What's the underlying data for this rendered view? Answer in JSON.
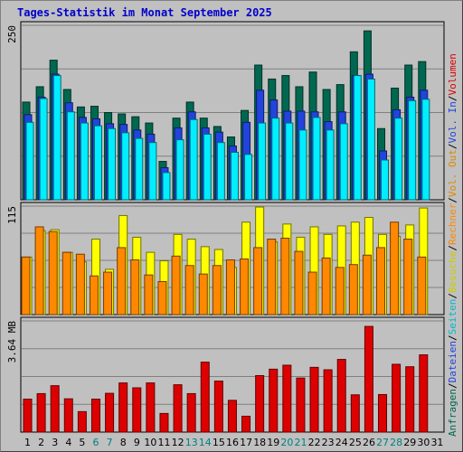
{
  "title": "Tages-Statistik im Monat September 2025",
  "chart_data": [
    {
      "type": "bar",
      "panel": "top",
      "y_max_label": "250",
      "ylim": [
        0,
        250
      ],
      "categories": [
        "1",
        "2",
        "3",
        "4",
        "5",
        "6",
        "7",
        "8",
        "9",
        "10",
        "11",
        "12",
        "13",
        "14",
        "15",
        "16",
        "17",
        "18",
        "19",
        "20",
        "21",
        "22",
        "23",
        "24",
        "25",
        "26",
        "27",
        "28",
        "29",
        "30",
        "31"
      ],
      "series": [
        {
          "name": "Anfragen",
          "color": "#006850",
          "values": [
            140,
            162,
            200,
            158,
            133,
            134,
            125,
            123,
            119,
            110,
            55,
            117,
            140,
            117,
            105,
            90,
            128,
            193,
            173,
            178,
            162,
            183,
            158,
            165,
            212,
            242,
            102,
            160,
            193,
            198,
            null
          ]
        },
        {
          "name": "Dateien",
          "color": "#2244dd",
          "values": [
            122,
            147,
            180,
            139,
            118,
            116,
            109,
            108,
            100,
            94,
            46,
            103,
            126,
            103,
            97,
            77,
            111,
            157,
            143,
            127,
            127,
            126,
            112,
            126,
            178,
            180,
            70,
            129,
            147,
            157,
            null
          ]
        },
        {
          "name": "Seiten",
          "color": "#00eeff",
          "values": [
            111,
            145,
            178,
            126,
            110,
            106,
            102,
            96,
            88,
            82,
            39,
            86,
            115,
            94,
            82,
            68,
            65,
            110,
            117,
            110,
            100,
            118,
            100,
            109,
            178,
            173,
            57,
            117,
            142,
            144,
            null
          ]
        }
      ]
    },
    {
      "type": "bar",
      "panel": "middle",
      "y_max_label": "115",
      "ylim": [
        0,
        115
      ],
      "categories": [
        "1",
        "2",
        "3",
        "4",
        "5",
        "6",
        "7",
        "8",
        "9",
        "10",
        "11",
        "12",
        "13",
        "14",
        "15",
        "16",
        "17",
        "18",
        "19",
        "20",
        "21",
        "22",
        "23",
        "24",
        "25",
        "26",
        "27",
        "28",
        "29",
        "30",
        "31"
      ],
      "series": [
        {
          "name": "Besuche",
          "color": "#ffff00",
          "values": [
            61,
            89,
            90,
            66,
            56,
            80,
            48,
            105,
            82,
            66,
            57,
            85,
            80,
            72,
            69,
            50,
            98,
            114,
            77,
            96,
            82,
            93,
            85,
            94,
            98,
            103,
            85,
            83,
            95,
            113,
            null
          ]
        },
        {
          "name": "Rechner",
          "color": "#ff8800",
          "values": [
            61,
            93,
            88,
            66,
            64,
            41,
            45,
            71,
            58,
            42,
            35,
            62,
            52,
            43,
            52,
            58,
            59,
            71,
            80,
            81,
            67,
            45,
            60,
            50,
            53,
            63,
            71,
            98,
            80,
            61,
            null
          ]
        }
      ]
    },
    {
      "type": "bar",
      "panel": "bottom",
      "y_max_label": "3.64 MB",
      "ylim": [
        0,
        3.64
      ],
      "categories": [
        "1",
        "2",
        "3",
        "4",
        "5",
        "6",
        "7",
        "8",
        "9",
        "10",
        "11",
        "12",
        "13",
        "14",
        "15",
        "16",
        "17",
        "18",
        "19",
        "20",
        "21",
        "22",
        "23",
        "24",
        "25",
        "26",
        "27",
        "28",
        "29",
        "30",
        "31"
      ],
      "series": [
        {
          "name": "Volumen",
          "color": "#dd0000",
          "values": [
            1.08,
            1.26,
            1.52,
            1.09,
            0.67,
            1.08,
            1.27,
            1.61,
            1.45,
            1.61,
            0.61,
            1.55,
            1.26,
            2.29,
            1.67,
            1.04,
            0.52,
            1.85,
            2.06,
            2.19,
            1.77,
            2.12,
            2.04,
            2.38,
            1.22,
            3.46,
            1.23,
            2.22,
            2.14,
            2.53,
            null
          ]
        }
      ]
    }
  ],
  "x_labels": [
    "1",
    "2",
    "3",
    "4",
    "5",
    "6",
    "7",
    "8",
    "9",
    "10",
    "11",
    "12",
    "13",
    "14",
    "15",
    "16",
    "17",
    "18",
    "19",
    "20",
    "21",
    "22",
    "23",
    "24",
    "25",
    "26",
    "27",
    "28",
    "29",
    "30",
    "31"
  ],
  "weekend_days": [
    "6",
    "7",
    "13",
    "14",
    "20",
    "21",
    "27",
    "28"
  ],
  "weekend_color": "#008080",
  "weekday_color": "#000000",
  "legend_right": [
    {
      "text": "Anfragen",
      "color": "#006850"
    },
    {
      "text": "/",
      "color": "#000000"
    },
    {
      "text": "Dateien",
      "color": "#2244dd"
    },
    {
      "text": "/",
      "color": "#000000"
    },
    {
      "text": "Seiten",
      "color": "#00bbcc"
    },
    {
      "text": "/",
      "color": "#000000"
    },
    {
      "text": "Besuche",
      "color": "#cccc00"
    },
    {
      "text": "/",
      "color": "#000000"
    },
    {
      "text": "Rechner",
      "color": "#ff8800"
    },
    {
      "text": "/",
      "color": "#000000"
    },
    {
      "text": "Vol. Out",
      "color": "#dd8800"
    },
    {
      "text": "/",
      "color": "#000000"
    },
    {
      "text": "Vol. In",
      "color": "#2244dd"
    },
    {
      "text": "/",
      "color": "#000000"
    },
    {
      "text": "Volumen",
      "color": "#dd0000"
    }
  ]
}
